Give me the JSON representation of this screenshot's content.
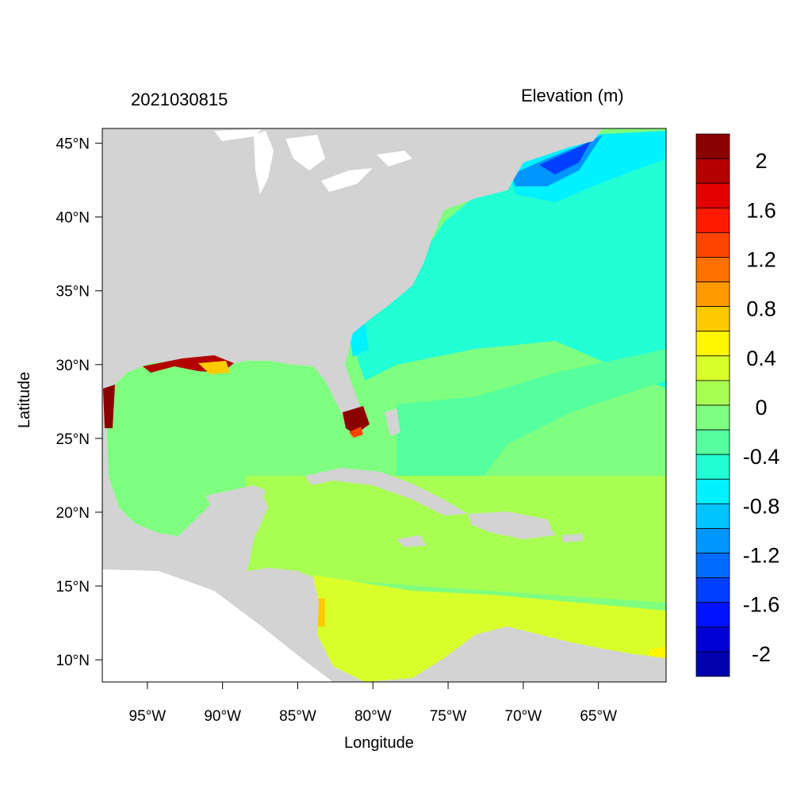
{
  "map": {
    "date_label": "2021030815",
    "field_label": "Elevation (m)",
    "xlabel": "Longitude",
    "ylabel": "Latitude",
    "lon_range": [
      -98,
      -60.5
    ],
    "lat_range": [
      8.5,
      46
    ],
    "x_ticks": [
      {
        "value": -95,
        "label": "95°W"
      },
      {
        "value": -90,
        "label": "90°W"
      },
      {
        "value": -85,
        "label": "85°W"
      },
      {
        "value": -80,
        "label": "80°W"
      },
      {
        "value": -75,
        "label": "75°W"
      },
      {
        "value": -70,
        "label": "70°W"
      },
      {
        "value": -65,
        "label": "65°W"
      }
    ],
    "y_ticks": [
      {
        "value": 45,
        "label": "45°N"
      },
      {
        "value": 40,
        "label": "40°N"
      },
      {
        "value": 35,
        "label": "35°N"
      },
      {
        "value": 30,
        "label": "30°N"
      },
      {
        "value": 25,
        "label": "25°N"
      },
      {
        "value": 20,
        "label": "20°N"
      },
      {
        "value": 15,
        "label": "15°N"
      },
      {
        "value": 10,
        "label": "10°N"
      }
    ],
    "land_color": "#d3d3d3"
  },
  "colorbar": {
    "colors_top_to_bottom": [
      "#8b0000",
      "#b40000",
      "#e40000",
      "#ff1a00",
      "#ff4400",
      "#ff7000",
      "#ff9b00",
      "#ffca00",
      "#fff500",
      "#d9ff2b",
      "#a8ff52",
      "#7fff7f",
      "#55ff9d",
      "#22ffd5",
      "#00f1ff",
      "#00c4ff",
      "#0096ff",
      "#006cff",
      "#003fff",
      "#0012ff",
      "#0000d4",
      "#0000ac"
    ],
    "labels": [
      "2",
      "1.6",
      "1.2",
      "0.8",
      "0.4",
      "0",
      "-0.4",
      "-0.8",
      "-1.2",
      "-1.6",
      "-2"
    ]
  }
}
